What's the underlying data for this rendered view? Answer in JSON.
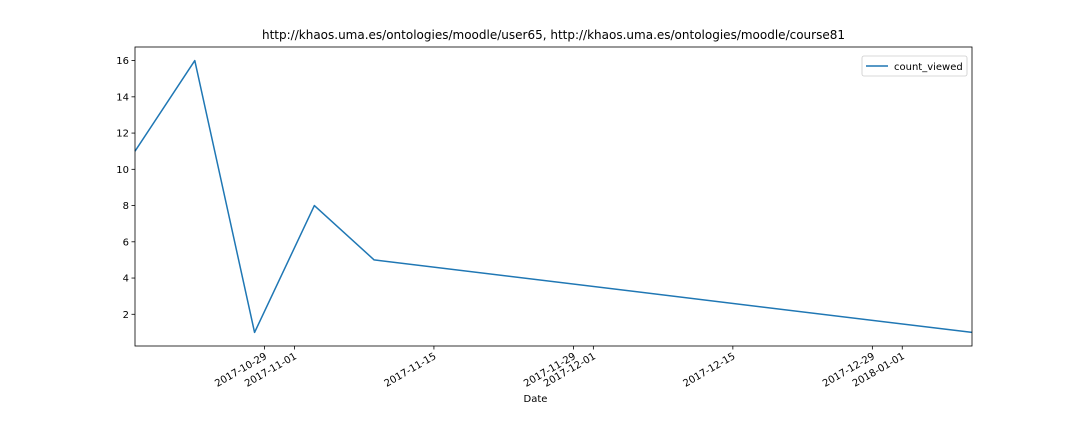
{
  "chart_data": {
    "type": "line",
    "title": "http://khaos.uma.es/ontologies/moodle/user65, http://khaos.uma.es/ontologies/moodle/course81",
    "xlabel": "Date",
    "ylabel": "",
    "x_axis_type": "date",
    "xlim": [
      "2017-10-16",
      "2018-01-08"
    ],
    "ylim": [
      0.25,
      16.75
    ],
    "x_ticks": [
      "2017-10-29",
      "2017-11-01",
      "2017-11-15",
      "2017-11-29",
      "2017-12-01",
      "2017-12-15",
      "2017-12-29",
      "2018-01-01"
    ],
    "y_ticks": [
      2,
      4,
      6,
      8,
      10,
      12,
      14,
      16
    ],
    "grid": false,
    "legend_position": "top-right",
    "series": [
      {
        "name": "count_viewed",
        "color": "#1f77b4",
        "x": [
          "2017-10-16",
          "2017-10-22",
          "2017-10-28",
          "2017-11-03",
          "2017-11-09",
          "2018-01-08"
        ],
        "values": [
          11,
          16,
          1,
          8,
          5,
          1
        ]
      }
    ]
  }
}
